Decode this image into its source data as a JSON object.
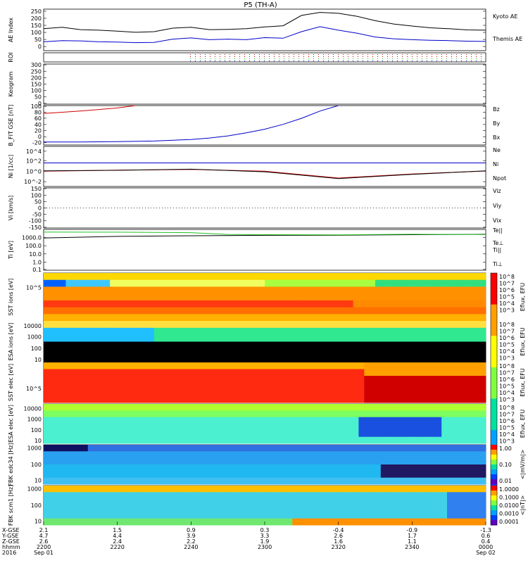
{
  "title": "P5 (TH-A)",
  "colors": {
    "black": "#000000",
    "red": "#d40000",
    "green": "#22c022",
    "blue": "#0000c8"
  },
  "chart_data": [
    {
      "panel": "ae",
      "type": "line",
      "ylabel": "AE Index",
      "yticks": [
        "250",
        "200",
        "150",
        "100",
        "50",
        "0"
      ],
      "ylim": [
        -20,
        260
      ],
      "series": [
        {
          "name": "Kyoto AE",
          "color": "#000000",
          "x": [
            0,
            5,
            10,
            15,
            20,
            25,
            30,
            35,
            40,
            45,
            50,
            55,
            60,
            65,
            70,
            75,
            80,
            85,
            90,
            95,
            100,
            105,
            110,
            115,
            120
          ],
          "y": [
            128,
            138,
            122,
            118,
            112,
            104,
            108,
            132,
            138,
            122,
            124,
            128,
            140,
            148,
            218,
            238,
            232,
            212,
            182,
            160,
            146,
            134,
            128,
            120,
            118
          ]
        },
        {
          "name": "Themis AE",
          "color": "#0000c8",
          "x": [
            0,
            5,
            10,
            15,
            20,
            25,
            30,
            35,
            40,
            45,
            50,
            55,
            60,
            65,
            70,
            75,
            80,
            85,
            90,
            95,
            100,
            105,
            110,
            115,
            120
          ],
          "y": [
            40,
            48,
            46,
            40,
            38,
            34,
            36,
            58,
            66,
            54,
            58,
            54,
            68,
            64,
            108,
            142,
            118,
            98,
            72,
            60,
            54,
            50,
            48,
            44,
            42
          ]
        }
      ]
    },
    {
      "panel": "roi",
      "type": "scatter",
      "ylabel": "ROI"
    },
    {
      "panel": "keogram",
      "type": "heatmap",
      "ylabel": "Keogram",
      "yticks": [
        "300",
        "250",
        "200",
        "150",
        "100",
        "50",
        "0"
      ]
    },
    {
      "panel": "bfield",
      "type": "line",
      "ylabel": "B_FIT GSE [nT]",
      "yticks": [
        "100",
        "80",
        "60",
        "40",
        "20",
        "0",
        "-20"
      ],
      "ylim": [
        -30,
        100
      ],
      "series": [
        {
          "name": "Bz",
          "color": "#d40000",
          "x": [
            0,
            10,
            20,
            25
          ],
          "y": [
            74,
            82,
            92,
            100
          ]
        },
        {
          "name": "By",
          "color": "#22c022",
          "x": [],
          "y": []
        },
        {
          "name": "Bx",
          "color": "#0000c8",
          "x": [
            0,
            10,
            20,
            30,
            40,
            45,
            50,
            55,
            60,
            65,
            70,
            75,
            80
          ],
          "y": [
            -20,
            -20,
            -19,
            -17,
            -12,
            -7,
            0,
            10,
            22,
            38,
            58,
            82,
            100
          ]
        }
      ]
    },
    {
      "panel": "density",
      "type": "line",
      "ylabel": "Ni [1/cc]",
      "yticks": [
        "10^4",
        "10^2",
        "10^0",
        "10^-2"
      ],
      "series": [
        {
          "name": "Ne",
          "color": "#d40000",
          "x": [
            0,
            20,
            40,
            60,
            80,
            100,
            120
          ],
          "y": [
            1,
            1.6,
            2.2,
            1,
            0.05,
            0.3,
            1.1
          ]
        },
        {
          "name": "Ni",
          "color": "#000000",
          "x": [
            0,
            20,
            40,
            60,
            80,
            100,
            120
          ],
          "y": [
            1.2,
            1.5,
            2.5,
            0.8,
            0.04,
            0.25,
            1.2
          ]
        },
        {
          "name": "Npot",
          "color": "#0000c8",
          "x": [
            0,
            20,
            40,
            60,
            80,
            100,
            120
          ],
          "y": [
            40,
            40,
            40,
            40,
            40,
            40,
            40
          ]
        }
      ]
    },
    {
      "panel": "velocity",
      "type": "line",
      "ylabel": "Vi [km/s]",
      "yticks": [
        "150",
        "100",
        "50",
        "0",
        "-50",
        "-100",
        "-150"
      ],
      "series": [
        {
          "name": "Viz",
          "color": "#d40000",
          "x": [],
          "y": []
        },
        {
          "name": "Viy",
          "color": "#22c022",
          "x": [],
          "y": []
        },
        {
          "name": "Vix",
          "color": "#0000c8",
          "x": [],
          "y": []
        }
      ]
    },
    {
      "panel": "temperature",
      "type": "line",
      "ylabel": "Ti [eV]",
      "yticks": [
        "1000.0",
        "100.0",
        "10.0",
        "1.0",
        "0.1"
      ],
      "series": [
        {
          "name": "Te||",
          "color": "#000000",
          "x": [
            0,
            20,
            40,
            60,
            80,
            100,
            120
          ],
          "y": [
            900,
            1400,
            1700,
            1900,
            2000,
            2300,
            2600
          ]
        },
        {
          "name": "Te⊥",
          "color": "#d40000",
          "x": [],
          "y": []
        },
        {
          "name": "Ti||",
          "color": "#22c022",
          "x": [
            0,
            20,
            40,
            50,
            60,
            80,
            100,
            120
          ],
          "y": [
            5000,
            4800,
            4200,
            2500,
            2300,
            2200,
            2600,
            2400
          ]
        },
        {
          "name": "Ti⊥",
          "color": "#0000c8",
          "x": [],
          "y": []
        }
      ]
    },
    {
      "panel": "sst1",
      "type": "heatmap",
      "ylabel": "SST ions [eV]",
      "yticks": [
        "10^5"
      ],
      "colorbar_label": "Eflux, EFU"
    },
    {
      "panel": "esa1",
      "type": "heatmap",
      "ylabel": "ESA ions [eV]",
      "yticks": [
        "10000",
        "1000",
        "100",
        "10"
      ],
      "colorbar_label": "Eflux, EFU"
    },
    {
      "panel": "sst2",
      "type": "heatmap",
      "ylabel": "SST elec [eV]",
      "yticks": [
        "10^5"
      ],
      "colorbar_label": "Eflux, EFU"
    },
    {
      "panel": "esa2",
      "type": "heatmap",
      "ylabel": "ESA elec [eV]",
      "yticks": [
        "10000",
        "1000",
        "100",
        "10"
      ],
      "colorbar_label": "Eflux, EFU"
    },
    {
      "panel": "fbk1",
      "type": "heatmap",
      "ylabel": "FBK edc34 [Hz]",
      "yticks": [
        "1000",
        "100",
        "10"
      ],
      "colorbar_label": "<|mV/m|>",
      "colorbar_ticks": [
        "1.00",
        "0.10",
        "0.01"
      ]
    },
    {
      "panel": "fbk2",
      "type": "heatmap",
      "ylabel": "FBK scm1 [Hz]",
      "yticks": [
        "1000",
        "100",
        "10"
      ],
      "colorbar_label": "<|nT|>",
      "colorbar_ticks": [
        "1.0000",
        "0.1000",
        "0.0100",
        "0.0010",
        "0.0001"
      ]
    }
  ],
  "legends": {
    "ae": [
      "Kyoto AE",
      "Themis AE"
    ],
    "bfield": [
      "Bz",
      "By",
      "Bx"
    ],
    "density": [
      "Ne",
      "Ni",
      "Npot"
    ],
    "velocity": [
      "Viz",
      "Viy",
      "Vix"
    ],
    "temperature": [
      "Te||",
      "Te⊥",
      "Ti||",
      "Ti⊥"
    ]
  },
  "colorbar_exponents": [
    "10^8",
    "10^7",
    "10^6",
    "10^5",
    "10^4",
    "10^3"
  ],
  "time_axis": {
    "row_labels": [
      "X-GSE",
      "Y-GSE",
      "Z-GSE",
      "hhmm",
      "2016"
    ],
    "ticks": [
      {
        "col": [
          "2.1",
          "4.7",
          "2.6",
          "2200",
          "Sep 01"
        ]
      },
      {
        "col": [
          "1.5",
          "4.4",
          "2.4",
          "2220"
        ]
      },
      {
        "col": [
          "0.9",
          "3.9",
          "2.2",
          "2240"
        ]
      },
      {
        "col": [
          "0.3",
          "3.3",
          "1.9",
          "2300"
        ]
      },
      {
        "col": [
          "-0.4",
          "2.6",
          "1.6",
          "2320"
        ]
      },
      {
        "col": [
          "-0.9",
          "1.7",
          "1.1",
          "2340"
        ]
      },
      {
        "col": [
          "-1.3",
          "0.6",
          "0.4",
          "0000",
          "Sep 02"
        ]
      }
    ]
  }
}
